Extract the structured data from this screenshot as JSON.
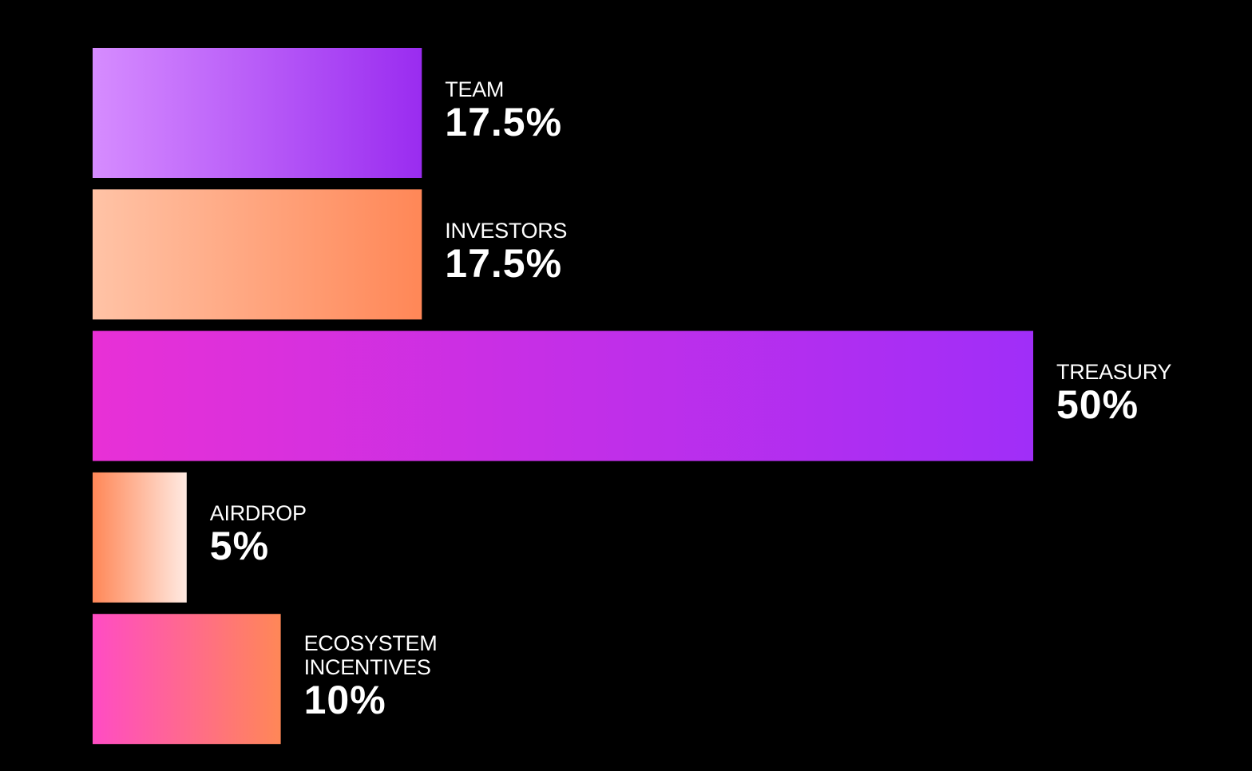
{
  "chart_data": {
    "type": "bar",
    "orientation": "horizontal",
    "categories": [
      "TEAM",
      "INVESTORS",
      "TREASURY",
      "AIRDROP",
      "ECOSYSTEM INCENTIVES"
    ],
    "values": [
      17.5,
      17.5,
      50,
      5,
      10
    ],
    "value_labels": [
      "17.5%",
      "17.5%",
      "50%",
      "5%",
      "10%"
    ],
    "colors": [
      [
        "#d68cff",
        "#9a2cf0"
      ],
      [
        "#ffc3a6",
        "#ff8757"
      ],
      [
        "#e830d6",
        "#a02ef8"
      ],
      [
        "#ff8757",
        "#ffeae2"
      ],
      [
        "#ff4cc4",
        "#ff8757"
      ]
    ]
  }
}
